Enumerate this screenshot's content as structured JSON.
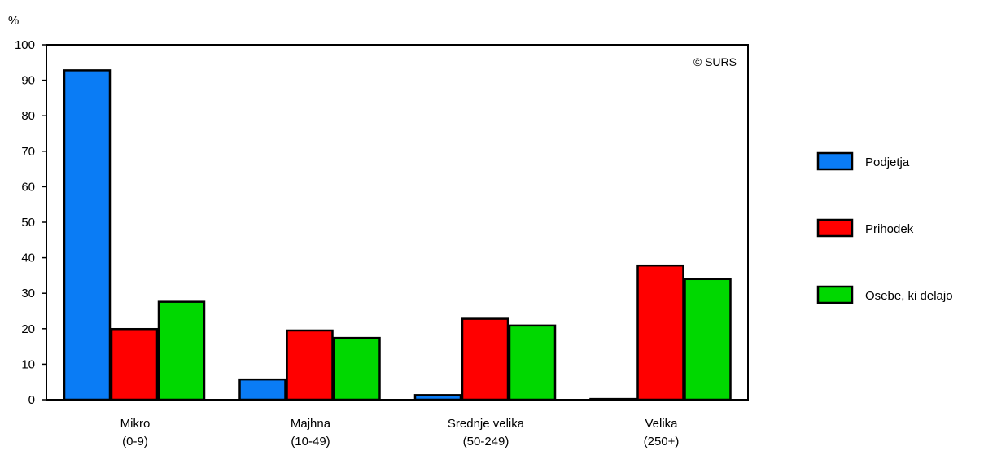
{
  "chart_data": {
    "type": "bar",
    "y_unit_label": "%",
    "watermark": "© SURS",
    "ylim": [
      0,
      100
    ],
    "yticks": [
      0,
      10,
      20,
      30,
      40,
      50,
      60,
      70,
      80,
      90,
      100
    ],
    "grid": false,
    "legend_position": "right",
    "categories": [
      {
        "name": "Mikro",
        "range": "(0-9)"
      },
      {
        "name": "Majhna",
        "range": "(10-49)"
      },
      {
        "name": "Srednje velika",
        "range": "(50-249)"
      },
      {
        "name": "Velika",
        "range": "(250+)"
      }
    ],
    "series": [
      {
        "name": "Podjetja",
        "color": "#0a7cf5",
        "values": [
          92.8,
          5.7,
          1.3,
          0.2
        ]
      },
      {
        "name": "Prihodek",
        "color": "#ff0000",
        "values": [
          19.9,
          19.5,
          22.8,
          37.8
        ]
      },
      {
        "name": "Osebe, ki delajo",
        "color": "#00d800",
        "values": [
          27.6,
          17.4,
          20.9,
          34.0
        ]
      }
    ]
  }
}
